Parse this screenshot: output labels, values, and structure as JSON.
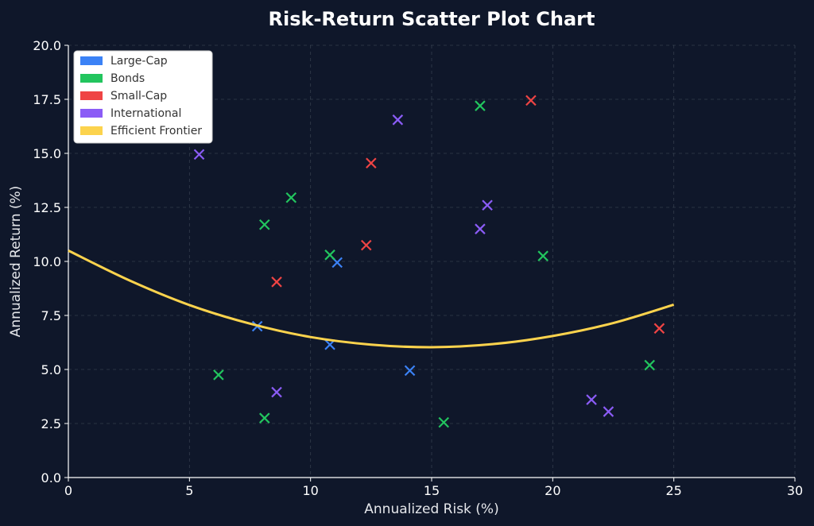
{
  "chart_data": {
    "type": "scatter",
    "title": "Risk-Return Scatter Plot Chart",
    "xlabel": "Annualized Risk (%)",
    "ylabel": "Annualized Return (%)",
    "xlim": [
      0,
      30
    ],
    "ylim": [
      0,
      20
    ],
    "x_ticks": [
      "0",
      "5",
      "10",
      "15",
      "20",
      "25",
      "30"
    ],
    "y_ticks": [
      "0.0",
      "2.5",
      "5.0",
      "7.5",
      "10.0",
      "12.5",
      "15.0",
      "17.5",
      "20.0"
    ],
    "grid": true,
    "legend_position": "top-left",
    "series": [
      {
        "name": "Large-Cap",
        "color": "#3b82f6",
        "marker": "x",
        "points": [
          [
            7.8,
            7.0
          ],
          [
            10.8,
            6.15
          ],
          [
            11.1,
            9.95
          ],
          [
            14.1,
            4.95
          ]
        ]
      },
      {
        "name": "Bonds",
        "color": "#22c55e",
        "marker": "x",
        "points": [
          [
            6.2,
            4.75
          ],
          [
            8.1,
            11.7
          ],
          [
            8.1,
            2.75
          ],
          [
            9.2,
            12.95
          ],
          [
            10.8,
            10.3
          ],
          [
            15.5,
            2.55
          ],
          [
            17.0,
            17.2
          ],
          [
            19.6,
            10.25
          ],
          [
            24.0,
            5.2
          ]
        ]
      },
      {
        "name": "Small-Cap",
        "color": "#ef4444",
        "marker": "x",
        "points": [
          [
            8.6,
            9.05
          ],
          [
            12.3,
            10.75
          ],
          [
            12.5,
            14.55
          ],
          [
            19.1,
            17.45
          ],
          [
            24.4,
            6.9
          ]
        ]
      },
      {
        "name": "International",
        "color": "#8b5cf6",
        "marker": "x",
        "points": [
          [
            5.4,
            14.95
          ],
          [
            8.6,
            3.95
          ],
          [
            13.6,
            16.55
          ],
          [
            17.0,
            11.5
          ],
          [
            17.3,
            12.6
          ],
          [
            21.6,
            3.6
          ],
          [
            22.3,
            3.05
          ]
        ]
      },
      {
        "name": "Efficient Frontier",
        "color": "#fcd34d",
        "marker": "line",
        "points": [
          [
            0,
            10.5
          ],
          [
            2.5,
            9.13
          ],
          [
            5,
            7.98
          ],
          [
            7.5,
            7.12
          ],
          [
            10,
            6.5
          ],
          [
            12.5,
            6.15
          ],
          [
            15,
            6.03
          ],
          [
            17.5,
            6.17
          ],
          [
            20,
            6.55
          ],
          [
            22.5,
            7.15
          ],
          [
            25,
            8.0
          ]
        ]
      }
    ]
  }
}
